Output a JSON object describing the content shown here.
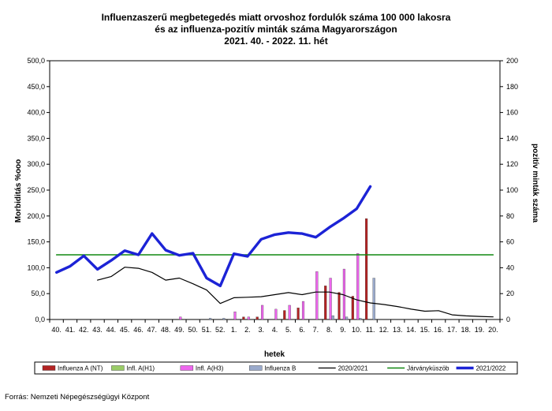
{
  "source": "Forrás: Nemzeti Népegészségügyi Központ",
  "chart_data": {
    "type": "bar",
    "title": [
      "Influenzaszerű megbetegedés miatt orvoshoz fordulók száma 100 000 lakosra",
      "és az influenza-pozitív minták száma Magyarországon",
      "2021. 40. - 2022. 11. hét"
    ],
    "xlabel": "hetek",
    "ylabel": "Morbiditás %ooo",
    "ylabel_right": "pozitív minták száma",
    "ylim": [
      0,
      500
    ],
    "ylim_right": [
      0,
      200
    ],
    "yticks": [
      "0,0",
      "50,0",
      "100,0",
      "150,0",
      "200,0",
      "250,0",
      "300,0",
      "350,0",
      "400,0",
      "450,0",
      "500,0"
    ],
    "yticks_right": [
      "0",
      "20",
      "40",
      "60",
      "80",
      "100",
      "120",
      "140",
      "160",
      "180",
      "200"
    ],
    "grid": false,
    "legend_position": "bottom",
    "categories": [
      "40.",
      "41.",
      "42.",
      "43.",
      "44.",
      "45.",
      "46.",
      "47.",
      "48.",
      "49.",
      "50.",
      "51.",
      "52.",
      "1.",
      "2.",
      "3.",
      "4.",
      "5.",
      "6.",
      "7.",
      "8.",
      "9.",
      "10.",
      "11.",
      "12.",
      "13.",
      "14.",
      "15.",
      "16.",
      "17.",
      "18.",
      "19.",
      "20."
    ],
    "bar_series": [
      {
        "name": "Influenza A (NT)",
        "color": "#b22222",
        "axis": "right",
        "values": [
          0,
          0,
          0,
          0,
          0,
          0,
          0,
          0,
          0,
          0,
          0,
          0,
          0,
          0,
          2,
          2,
          0,
          7,
          9,
          0,
          26,
          21,
          18,
          78,
          0,
          0,
          0,
          0,
          0,
          0,
          0,
          0,
          0
        ]
      },
      {
        "name": "Infl. A(H1)",
        "color": "#99cc66",
        "axis": "right",
        "values": [
          0,
          0,
          0,
          0,
          0,
          0,
          0,
          0,
          0,
          0,
          0,
          0,
          0,
          0,
          0,
          0,
          0,
          0,
          0,
          0,
          0,
          0,
          0,
          0,
          0,
          0,
          0,
          0,
          0,
          0,
          0,
          0,
          0
        ]
      },
      {
        "name": "Infl. A(H3)",
        "color": "#ee66ee",
        "axis": "right",
        "values": [
          0,
          0,
          0,
          0,
          0,
          0,
          0,
          0,
          0,
          2,
          0,
          0,
          0,
          6,
          2,
          11,
          8,
          11,
          14,
          37,
          32,
          39,
          51,
          0,
          0,
          0,
          0,
          0,
          0,
          0,
          0,
          0,
          0
        ]
      },
      {
        "name": "Influenza B",
        "color": "#9aaacc",
        "axis": "right",
        "values": [
          0,
          0,
          0,
          0,
          0,
          0,
          0,
          0,
          0,
          0,
          0,
          1,
          1,
          0,
          0,
          0,
          0,
          0,
          0,
          0,
          3,
          2,
          1,
          32,
          0,
          0,
          0,
          0,
          0,
          0,
          0,
          0,
          0
        ]
      }
    ],
    "line_series": [
      {
        "name": "2020/2021",
        "color": "#000000",
        "axis": "left",
        "values": [
          null,
          null,
          null,
          76,
          83,
          101,
          99,
          91,
          76,
          80,
          69,
          57,
          31,
          42,
          43,
          44,
          48,
          52,
          48,
          53,
          53,
          48,
          38,
          32,
          29,
          25,
          20,
          16,
          17,
          9,
          7,
          6,
          5
        ]
      },
      {
        "name": "Járványküszöb",
        "color": "#118811",
        "axis": "left",
        "values": [
          125,
          125,
          125,
          125,
          125,
          125,
          125,
          125,
          125,
          125,
          125,
          125,
          125,
          125,
          125,
          125,
          125,
          125,
          125,
          125,
          125,
          125,
          125,
          125,
          125,
          125,
          125,
          125,
          125,
          125,
          125,
          125,
          125
        ]
      },
      {
        "name": "2021/2022",
        "color": "#1c23d6",
        "axis": "left",
        "values": [
          91,
          103,
          123,
          97,
          114,
          133,
          125,
          166,
          134,
          124,
          128,
          80,
          65,
          127,
          122,
          155,
          164,
          168,
          166,
          159,
          178,
          195,
          214,
          257,
          null,
          null,
          null,
          null,
          null,
          null,
          null,
          null,
          null
        ]
      }
    ]
  }
}
